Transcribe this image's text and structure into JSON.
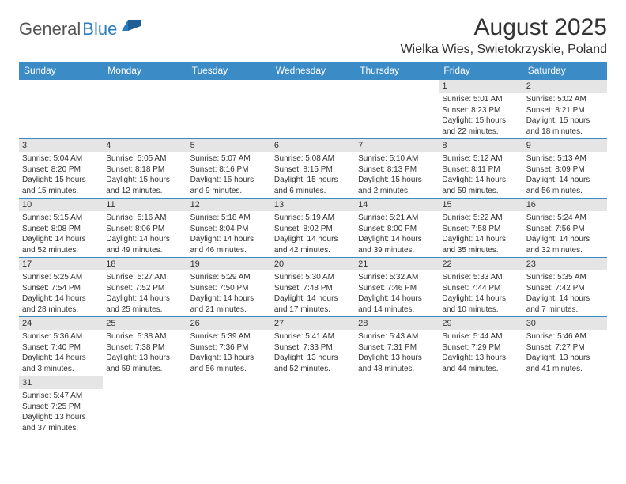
{
  "logo": {
    "text1": "General",
    "text2": "Blue"
  },
  "title": "August 2025",
  "location": "Wielka Wies, Swietokrzyskie, Poland",
  "colors": {
    "header_bg": "#3b8bc7",
    "header_text": "#ffffff",
    "daynum_bg": "#e5e5e5",
    "border": "#3b8bc7",
    "text": "#333333",
    "logo_gray": "#555555",
    "logo_blue": "#2a7bbf"
  },
  "day_headers": [
    "Sunday",
    "Monday",
    "Tuesday",
    "Wednesday",
    "Thursday",
    "Friday",
    "Saturday"
  ],
  "weeks": [
    [
      null,
      null,
      null,
      null,
      null,
      {
        "n": "1",
        "sunrise": "5:01 AM",
        "sunset": "8:23 PM",
        "daylight": "15 hours and 22 minutes."
      },
      {
        "n": "2",
        "sunrise": "5:02 AM",
        "sunset": "8:21 PM",
        "daylight": "15 hours and 18 minutes."
      }
    ],
    [
      {
        "n": "3",
        "sunrise": "5:04 AM",
        "sunset": "8:20 PM",
        "daylight": "15 hours and 15 minutes."
      },
      {
        "n": "4",
        "sunrise": "5:05 AM",
        "sunset": "8:18 PM",
        "daylight": "15 hours and 12 minutes."
      },
      {
        "n": "5",
        "sunrise": "5:07 AM",
        "sunset": "8:16 PM",
        "daylight": "15 hours and 9 minutes."
      },
      {
        "n": "6",
        "sunrise": "5:08 AM",
        "sunset": "8:15 PM",
        "daylight": "15 hours and 6 minutes."
      },
      {
        "n": "7",
        "sunrise": "5:10 AM",
        "sunset": "8:13 PM",
        "daylight": "15 hours and 2 minutes."
      },
      {
        "n": "8",
        "sunrise": "5:12 AM",
        "sunset": "8:11 PM",
        "daylight": "14 hours and 59 minutes."
      },
      {
        "n": "9",
        "sunrise": "5:13 AM",
        "sunset": "8:09 PM",
        "daylight": "14 hours and 56 minutes."
      }
    ],
    [
      {
        "n": "10",
        "sunrise": "5:15 AM",
        "sunset": "8:08 PM",
        "daylight": "14 hours and 52 minutes."
      },
      {
        "n": "11",
        "sunrise": "5:16 AM",
        "sunset": "8:06 PM",
        "daylight": "14 hours and 49 minutes."
      },
      {
        "n": "12",
        "sunrise": "5:18 AM",
        "sunset": "8:04 PM",
        "daylight": "14 hours and 46 minutes."
      },
      {
        "n": "13",
        "sunrise": "5:19 AM",
        "sunset": "8:02 PM",
        "daylight": "14 hours and 42 minutes."
      },
      {
        "n": "14",
        "sunrise": "5:21 AM",
        "sunset": "8:00 PM",
        "daylight": "14 hours and 39 minutes."
      },
      {
        "n": "15",
        "sunrise": "5:22 AM",
        "sunset": "7:58 PM",
        "daylight": "14 hours and 35 minutes."
      },
      {
        "n": "16",
        "sunrise": "5:24 AM",
        "sunset": "7:56 PM",
        "daylight": "14 hours and 32 minutes."
      }
    ],
    [
      {
        "n": "17",
        "sunrise": "5:25 AM",
        "sunset": "7:54 PM",
        "daylight": "14 hours and 28 minutes."
      },
      {
        "n": "18",
        "sunrise": "5:27 AM",
        "sunset": "7:52 PM",
        "daylight": "14 hours and 25 minutes."
      },
      {
        "n": "19",
        "sunrise": "5:29 AM",
        "sunset": "7:50 PM",
        "daylight": "14 hours and 21 minutes."
      },
      {
        "n": "20",
        "sunrise": "5:30 AM",
        "sunset": "7:48 PM",
        "daylight": "14 hours and 17 minutes."
      },
      {
        "n": "21",
        "sunrise": "5:32 AM",
        "sunset": "7:46 PM",
        "daylight": "14 hours and 14 minutes."
      },
      {
        "n": "22",
        "sunrise": "5:33 AM",
        "sunset": "7:44 PM",
        "daylight": "14 hours and 10 minutes."
      },
      {
        "n": "23",
        "sunrise": "5:35 AM",
        "sunset": "7:42 PM",
        "daylight": "14 hours and 7 minutes."
      }
    ],
    [
      {
        "n": "24",
        "sunrise": "5:36 AM",
        "sunset": "7:40 PM",
        "daylight": "14 hours and 3 minutes."
      },
      {
        "n": "25",
        "sunrise": "5:38 AM",
        "sunset": "7:38 PM",
        "daylight": "13 hours and 59 minutes."
      },
      {
        "n": "26",
        "sunrise": "5:39 AM",
        "sunset": "7:36 PM",
        "daylight": "13 hours and 56 minutes."
      },
      {
        "n": "27",
        "sunrise": "5:41 AM",
        "sunset": "7:33 PM",
        "daylight": "13 hours and 52 minutes."
      },
      {
        "n": "28",
        "sunrise": "5:43 AM",
        "sunset": "7:31 PM",
        "daylight": "13 hours and 48 minutes."
      },
      {
        "n": "29",
        "sunrise": "5:44 AM",
        "sunset": "7:29 PM",
        "daylight": "13 hours and 44 minutes."
      },
      {
        "n": "30",
        "sunrise": "5:46 AM",
        "sunset": "7:27 PM",
        "daylight": "13 hours and 41 minutes."
      }
    ],
    [
      {
        "n": "31",
        "sunrise": "5:47 AM",
        "sunset": "7:25 PM",
        "daylight": "13 hours and 37 minutes."
      },
      null,
      null,
      null,
      null,
      null,
      null
    ]
  ],
  "labels": {
    "sunrise_prefix": "Sunrise: ",
    "sunset_prefix": "Sunset: ",
    "daylight_prefix": "Daylight: "
  }
}
